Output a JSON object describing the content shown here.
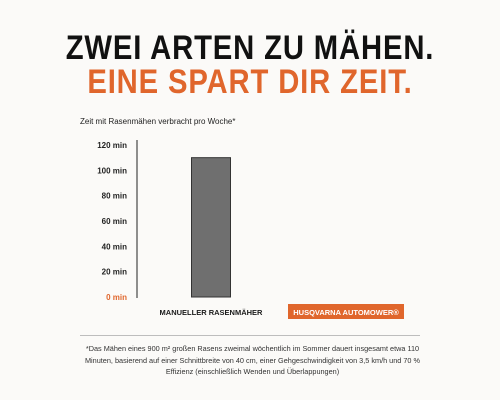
{
  "headline": {
    "line1": "ZWEI ARTEN ZU MÄHEN.",
    "line2": "EINE SPART DIR ZEIT."
  },
  "colors": {
    "accent": "#e0662c",
    "bar_manual": "#6f6f6f",
    "text": "#1b1b1b"
  },
  "chart_data": {
    "type": "bar",
    "title": "Zeit mit Rasenmähen verbracht pro Woche*",
    "categories": [
      "MANUELLER RASENMÄHER",
      "HUSQVARNA AUTOMOWER®"
    ],
    "values": [
      110,
      0
    ],
    "y_ticks": [
      "0 min",
      "20 min",
      "40 min",
      "60 min",
      "80 min",
      "100 min",
      "120 min"
    ],
    "ylim": [
      0,
      120
    ],
    "grid": false
  },
  "footnote": "*Das Mähen eines 900 m² großen Rasens zweimal wöchentlich im Sommer dauert insgesamt etwa 110 Minuten, basierend auf einer Schnittbreite von 40 cm, einer Gehgeschwindigkeit von 3,5 km/h und 70 % Effizienz (einschließlich Wenden und Überlappungen)"
}
